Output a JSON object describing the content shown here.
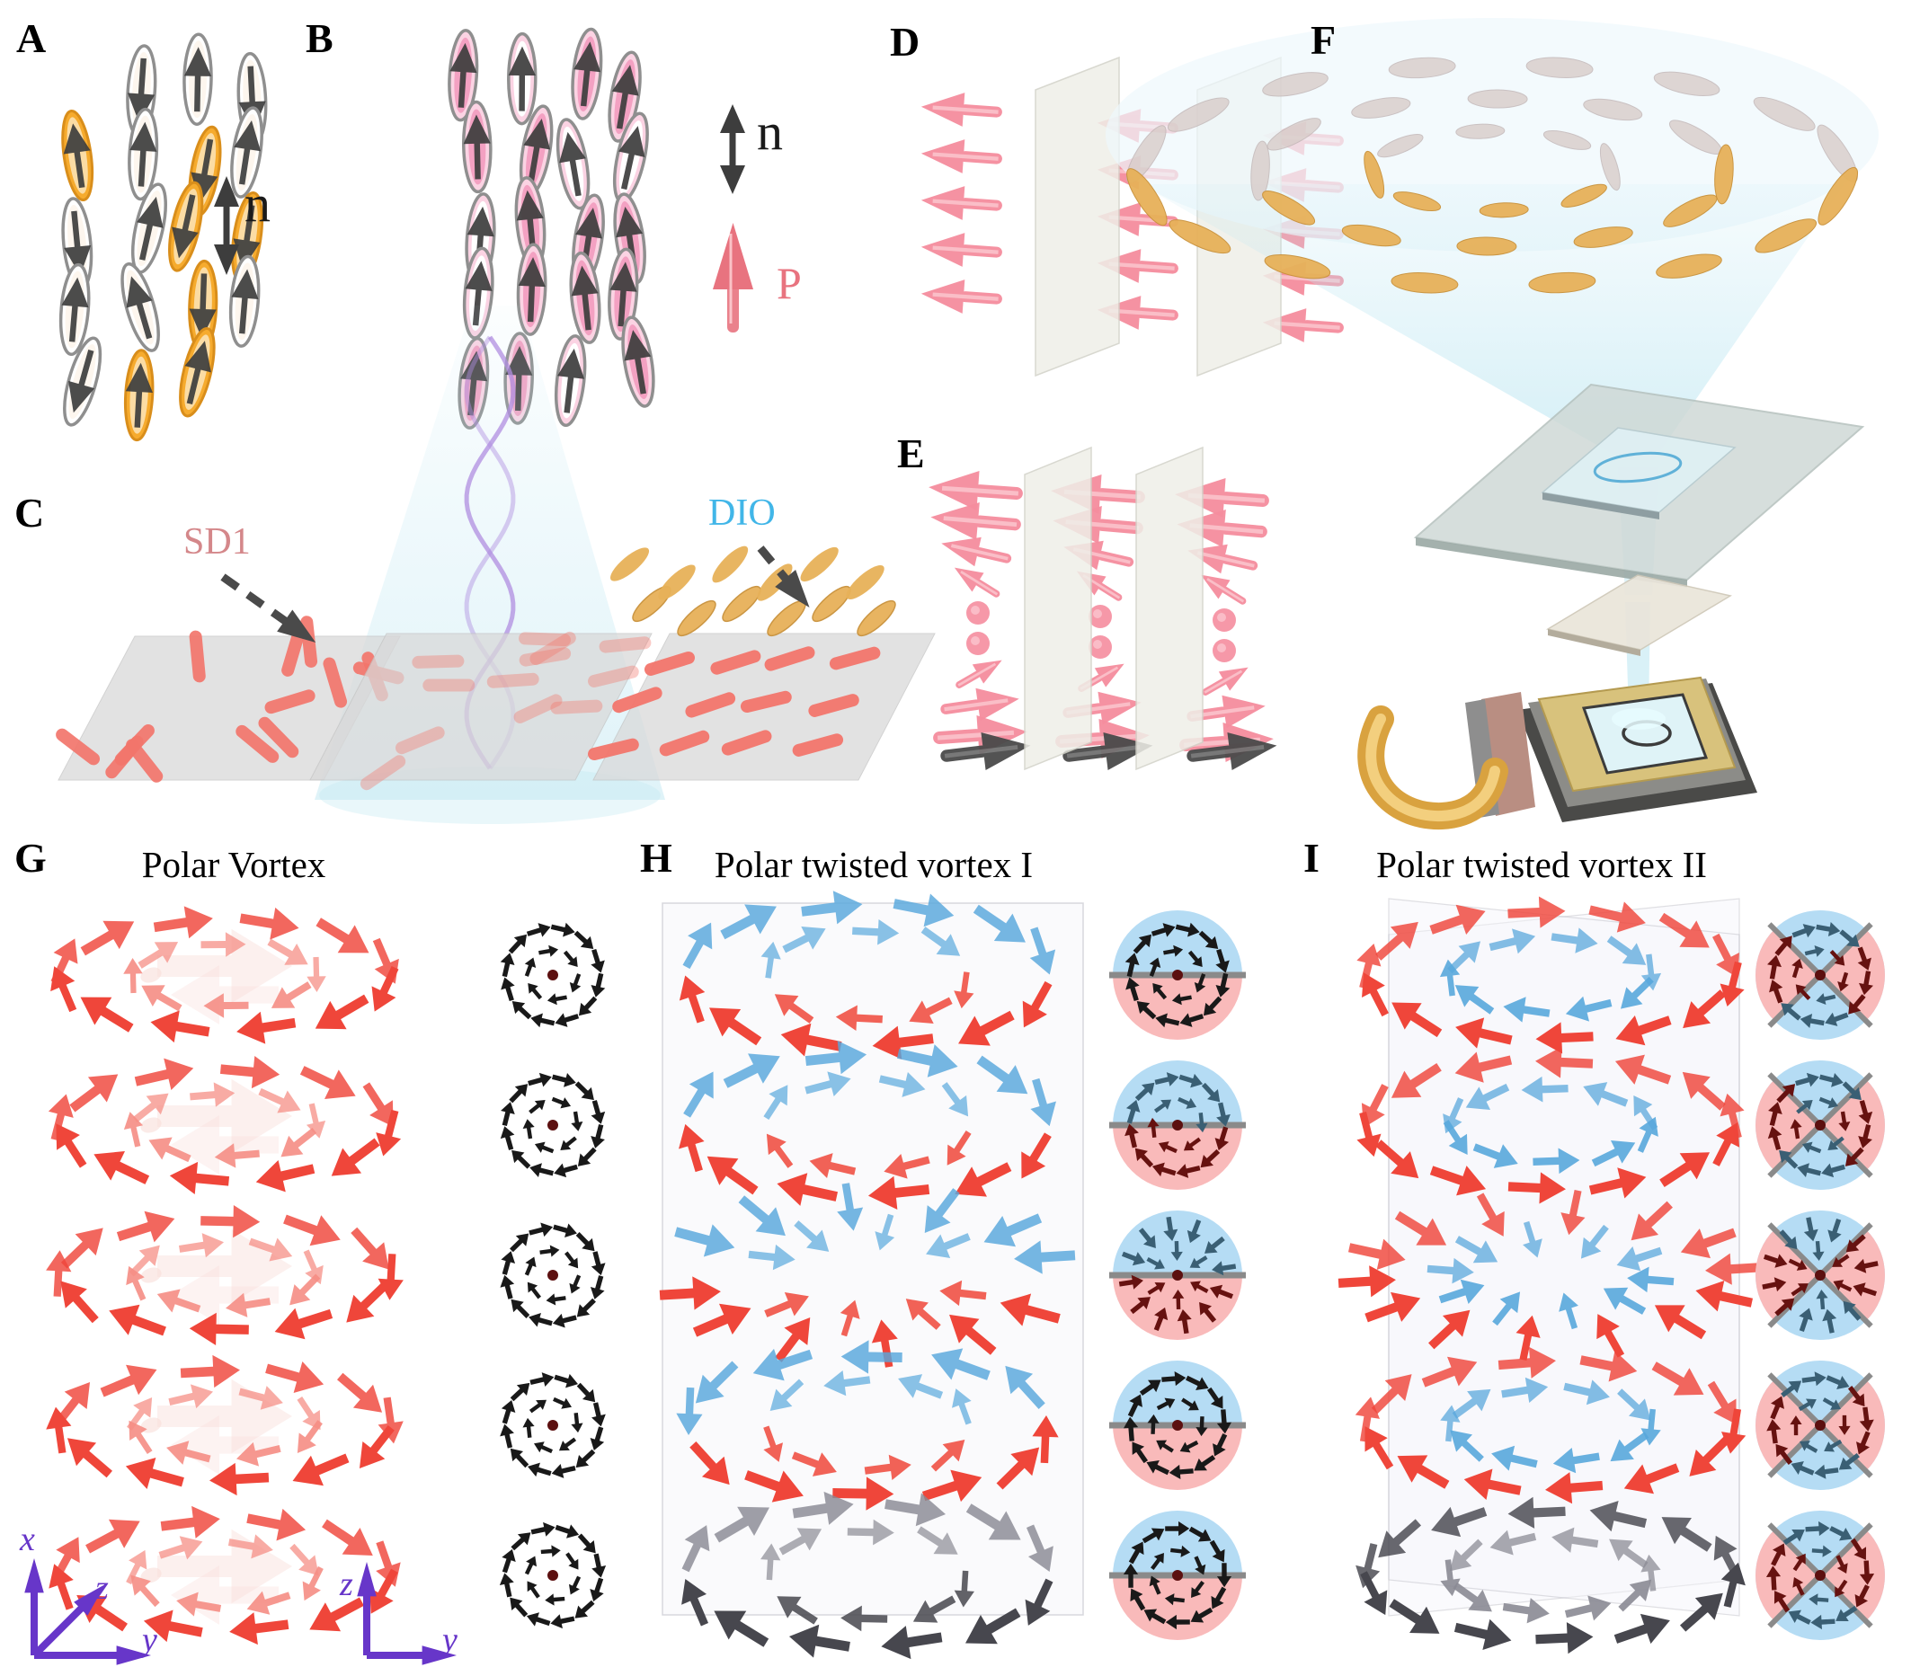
{
  "figure": {
    "panels": {
      "A": {
        "label": "A",
        "director_label": "n"
      },
      "B": {
        "label": "B",
        "director_label": "n",
        "polarization_label": "P"
      },
      "C": {
        "label": "C",
        "alignment_layer_label": "SD1",
        "material_label": "DIO"
      },
      "D": {
        "label": "D"
      },
      "E": {
        "label": "E"
      },
      "F": {
        "label": "F"
      },
      "G": {
        "label": "G",
        "title": "Polar Vortex",
        "slice_count": 5
      },
      "H": {
        "label": "H",
        "title": "Polar twisted vortex I",
        "slice_count": 5
      },
      "I": {
        "label": "I",
        "title": "Polar twisted vortex II",
        "slice_count": 5
      }
    },
    "axes": {
      "main": {
        "x": "x",
        "y": "y",
        "z": "z"
      },
      "slice": {
        "z": "z",
        "y": "y"
      }
    },
    "colors": {
      "red_arrow": "#ef463a",
      "red_arrow_light": "#f58d84",
      "red_ghost": "#f9ddd9",
      "blue_arrow": "#58a7dc",
      "gray_arrow_dark": "#47474e",
      "gray_arrow_light": "#8a8a94",
      "pink_cone": "#f58d9e",
      "pink_cone_light": "#fbc0ca",
      "dark_arrow": "#3d3d3d",
      "orange_molecule": "#f6ab2e",
      "orange_molecule_inner": "#fbdca4",
      "pink_molecule": "#f3a1c2",
      "pink_molecule_inner": "#fbd3e3",
      "molecule_outline": "#8f8f8f",
      "rod_salmon": "#f2756b",
      "gold_ellipsoid": "#e7b159",
      "gold_edge": "#c9913a",
      "inset_blue_bg": "#b5dcf4",
      "inset_pink_bg": "#f9baba",
      "inset_teal": "#3a5f74",
      "inset_maroon": "#661210",
      "inset_black": "#191919",
      "inset_divider": "#8a8a8a",
      "inset_center_dot": "#5c1010",
      "plane_fill": "#f6f6fb",
      "plane_stroke": "#b9b9c2",
      "axis_purple": "#6736c9",
      "sd1_color": "#d4878a",
      "dio_color": "#41b6e8",
      "p_color": "#e8737f",
      "beam_cyan": "#bfe7f2",
      "helix_purple": "#b08ee0",
      "flex_gold": "#d9a23f",
      "flex_gold_hi": "#f3cf7e"
    }
  }
}
